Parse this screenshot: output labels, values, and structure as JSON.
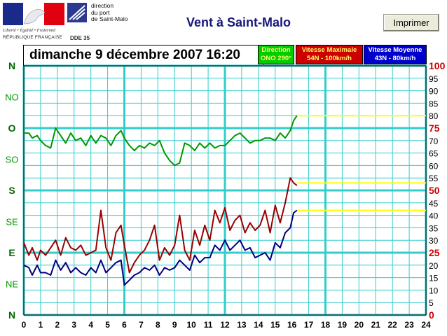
{
  "header": {
    "logo_left": {
      "motto": "Liberté • Égalité • Fraternité",
      "country": "RÉPUBLIQUE FRANÇAISE"
    },
    "logo_right": {
      "line1": "direction",
      "line2": "du port",
      "line3": "de Saint-Malo",
      "code": "DDE 35"
    },
    "title": "Vent à Saint-Malo",
    "print_button": "Imprimer"
  },
  "date_label": "dimanche 9 décembre 2007  16:20",
  "legend": {
    "direction": {
      "title": "Direction",
      "value": "ONO 290°",
      "bg": "#00cc00",
      "fg": "#ffff66"
    },
    "max": {
      "title": "Vitesse Maximale",
      "value": "54N - 100km/h",
      "bg": "#cc0000",
      "fg": "#ffff66"
    },
    "avg": {
      "title": "Vitesse Moyenne",
      "value": "43N - 80km/h",
      "bg": "#0000cc",
      "fg": "#ffffff"
    }
  },
  "colors": {
    "grid": "#33cccc",
    "grid_major": "#22cccc",
    "direction": "#009900",
    "max": "#990000",
    "avg": "#000080",
    "forecast": "#ffff00",
    "axis_red": "#cc0000"
  },
  "chart_data": {
    "type": "line",
    "xlabel": "",
    "ylabel": "",
    "xlim": [
      0,
      24
    ],
    "x_ticks": [
      "0",
      "1",
      "2",
      "3",
      "4",
      "5",
      "6",
      "7",
      "8",
      "9",
      "10",
      "11",
      "12",
      "13",
      "14",
      "15",
      "16",
      "17",
      "18",
      "19",
      "20",
      "21",
      "22",
      "23",
      "24"
    ],
    "direction_labels": [
      "N",
      "NE",
      "E",
      "SE",
      "S",
      "SO",
      "O",
      "NO",
      "N"
    ],
    "ylim": [
      0,
      100
    ],
    "y_ticks_right": [
      "0",
      "5",
      "10",
      "15",
      "20",
      "25",
      "30",
      "35",
      "40",
      "45",
      "50",
      "55",
      "60",
      "65",
      "70",
      "75",
      "80",
      "85",
      "90",
      "95",
      "100"
    ],
    "y_ticks_red": [
      "0",
      "25",
      "50",
      "75",
      "100"
    ],
    "series": [
      {
        "name": "Direction",
        "x": [
          0,
          0.3,
          0.5,
          0.8,
          1,
          1.3,
          1.6,
          1.9,
          2.2,
          2.5,
          2.8,
          3.1,
          3.4,
          3.7,
          4,
          4.3,
          4.6,
          4.9,
          5.2,
          5.5,
          5.8,
          6,
          6.3,
          6.6,
          6.9,
          7.2,
          7.5,
          7.8,
          8.1,
          8.4,
          8.7,
          9,
          9.3,
          9.6,
          9.9,
          10.2,
          10.5,
          10.8,
          11.1,
          11.4,
          11.7,
          12,
          12.3,
          12.6,
          12.9,
          13.2,
          13.5,
          13.8,
          14.1,
          14.4,
          14.7,
          15,
          15.3,
          15.6,
          15.9,
          16.1,
          16.3
        ],
        "values": [
          73,
          73,
          71,
          72,
          70,
          68,
          67,
          75,
          72,
          69,
          73,
          70,
          71,
          68,
          72,
          69,
          72,
          71,
          68,
          72,
          74,
          71,
          68,
          66,
          68,
          67,
          69,
          68,
          70,
          65,
          62,
          60,
          61,
          69,
          68,
          66,
          69,
          67,
          69,
          67,
          68,
          68,
          70,
          72,
          73,
          71,
          69,
          70,
          70,
          71,
          71,
          70,
          73,
          71,
          74,
          78,
          80
        ]
      },
      {
        "name": "Vitesse Maximale",
        "x": [
          0,
          0.3,
          0.5,
          0.8,
          1,
          1.3,
          1.6,
          1.9,
          2.2,
          2.5,
          2.8,
          3.1,
          3.4,
          3.7,
          4,
          4.3,
          4.6,
          4.9,
          5.2,
          5.5,
          5.8,
          6,
          6.3,
          6.6,
          6.9,
          7.2,
          7.5,
          7.8,
          8.1,
          8.4,
          8.7,
          9,
          9.3,
          9.6,
          9.9,
          10.2,
          10.5,
          10.8,
          11.1,
          11.4,
          11.7,
          12,
          12.3,
          12.6,
          12.9,
          13.2,
          13.5,
          13.8,
          14.1,
          14.4,
          14.7,
          15,
          15.3,
          15.6,
          15.9,
          16.1,
          16.3
        ],
        "values": [
          29,
          24,
          27,
          22,
          26,
          24,
          27,
          30,
          24,
          31,
          27,
          26,
          28,
          24,
          25,
          26,
          42,
          27,
          22,
          33,
          36,
          28,
          17,
          21,
          24,
          26,
          30,
          36,
          22,
          27,
          24,
          28,
          40,
          26,
          22,
          34,
          28,
          36,
          30,
          42,
          37,
          43,
          34,
          38,
          40,
          33,
          37,
          34,
          36,
          42,
          33,
          44,
          37,
          45,
          55,
          53,
          52
        ]
      },
      {
        "name": "Vitesse Moyenne",
        "x": [
          0,
          0.3,
          0.5,
          0.8,
          1,
          1.3,
          1.6,
          1.9,
          2.2,
          2.5,
          2.8,
          3.1,
          3.4,
          3.7,
          4,
          4.3,
          4.6,
          4.9,
          5.2,
          5.5,
          5.8,
          6,
          6.3,
          6.6,
          6.9,
          7.2,
          7.5,
          7.8,
          8.1,
          8.4,
          8.7,
          9,
          9.3,
          9.6,
          9.9,
          10.2,
          10.5,
          10.8,
          11.1,
          11.4,
          11.7,
          12,
          12.3,
          12.6,
          12.9,
          13.2,
          13.5,
          13.8,
          14.1,
          14.4,
          14.7,
          15,
          15.3,
          15.6,
          15.9,
          16.1,
          16.3
        ],
        "values": [
          20,
          19,
          16,
          20,
          17,
          17,
          16,
          22,
          18,
          21,
          17,
          19,
          17,
          16,
          19,
          17,
          22,
          17,
          19,
          21,
          22,
          12,
          14,
          16,
          17,
          19,
          18,
          20,
          16,
          19,
          18,
          19,
          22,
          20,
          18,
          24,
          21,
          23,
          23,
          28,
          26,
          30,
          26,
          28,
          30,
          26,
          27,
          23,
          24,
          25,
          22,
          29,
          27,
          33,
          35,
          41,
          42
        ]
      }
    ],
    "forecast": [
      {
        "series": "Direction",
        "from_x": 16.3,
        "to_x": 24,
        "value": 80
      },
      {
        "series": "Vitesse Maximale",
        "from_x": 16.3,
        "to_x": 24,
        "value": 53
      },
      {
        "series": "Vitesse Moyenne",
        "from_x": 16.3,
        "to_x": 24,
        "value": 42
      }
    ]
  }
}
